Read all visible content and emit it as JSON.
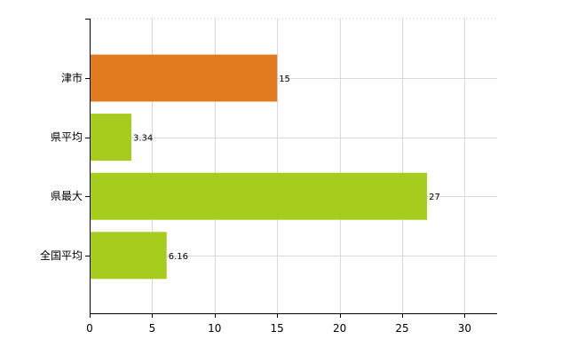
{
  "chart_data": {
    "type": "bar",
    "orientation": "horizontal",
    "categories": [
      "津市",
      "県平均",
      "県最大",
      "全国平均"
    ],
    "values": [
      15,
      3.34,
      27,
      6.16
    ],
    "value_labels": [
      "15",
      "3.34",
      "27",
      "6.16"
    ],
    "bar_colors": [
      "#e07b20",
      "#a6cc1e",
      "#a6cc1e",
      "#a6cc1e"
    ],
    "xlim": [
      0,
      32.5
    ],
    "xticks": [
      0,
      5,
      10,
      15,
      20,
      25,
      30
    ],
    "xtick_labels": [
      "0",
      "5",
      "10",
      "15",
      "20",
      "25",
      "30"
    ],
    "grid": true,
    "title": "",
    "xlabel": "",
    "ylabel": ""
  }
}
